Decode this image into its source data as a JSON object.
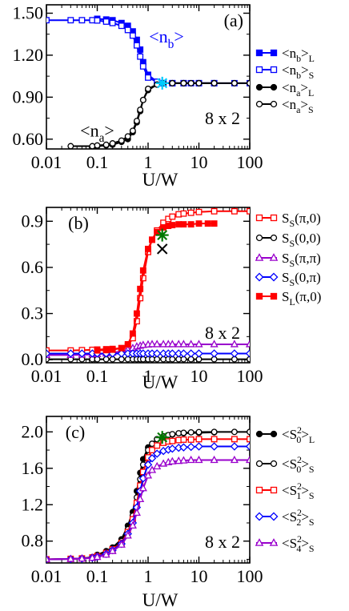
{
  "figure": {
    "size_label": "8 x 2"
  },
  "chart_data": [
    {
      "type": "line",
      "panel_label": "(a)",
      "size_label": "8 x 2",
      "xlabel": "U/W",
      "ylabel": "",
      "xscale": "log",
      "xlim": [
        0.01,
        100
      ],
      "ylim": [
        0.53,
        1.56
      ],
      "xticks": [
        0.01,
        0.1,
        1,
        10,
        100
      ],
      "xtick_labels": [
        "0.01",
        "0.1",
        "1",
        "10",
        "100"
      ],
      "yticks": [
        0.6,
        0.9,
        1.2,
        1.5
      ],
      "ytick_labels": [
        "0.60",
        "0.90",
        "1.20",
        "1.50"
      ],
      "legend_position": "right",
      "annotations": [
        {
          "text": "<n",
          "sub": "b",
          "close": ">",
          "x": 2.3,
          "y": 1.29,
          "color": "#0000ff"
        },
        {
          "text": "<n",
          "sub": "a",
          "close": ">",
          "x": 0.1,
          "y": 0.62,
          "color": "#000000"
        }
      ],
      "markers_extra": [
        {
          "shape": "asterisk",
          "x": 1.9,
          "y": 1.0,
          "color": "#00ccff"
        }
      ],
      "series": [
        {
          "name": "<n",
          "sub": "b",
          "close": ">",
          "tail": "L",
          "color": "#0000ff",
          "marker": "square",
          "fill": true,
          "x": [
            0.1,
            0.15,
            0.2,
            0.3,
            0.4,
            0.5,
            0.6,
            0.7,
            0.8,
            1.0,
            1.5,
            2.0,
            3.0,
            5.0,
            10,
            20
          ],
          "y": [
            1.46,
            1.455,
            1.45,
            1.43,
            1.41,
            1.37,
            1.31,
            1.24,
            1.15,
            1.06,
            1.01,
            1.0,
            1.0,
            1.0,
            1.0,
            1.0
          ]
        },
        {
          "name": "<n",
          "sub": "b",
          "close": ">",
          "tail": "S",
          "color": "#0000ff",
          "marker": "square",
          "fill": false,
          "x": [
            0.01,
            0.03,
            0.05,
            0.08,
            0.1,
            0.15,
            0.2,
            0.3,
            0.4,
            0.5,
            0.6,
            0.7,
            0.8,
            1.0,
            1.5,
            2.0,
            3.0,
            5.0,
            7.0,
            10,
            20,
            50,
            100
          ],
          "y": [
            1.45,
            1.45,
            1.45,
            1.45,
            1.448,
            1.44,
            1.43,
            1.41,
            1.38,
            1.34,
            1.27,
            1.19,
            1.12,
            1.04,
            1.01,
            1.0,
            1.0,
            1.0,
            1.0,
            1.0,
            1.0,
            1.0,
            1.0
          ]
        },
        {
          "name": "<n",
          "sub": "a",
          "close": ">",
          "tail": "L",
          "color": "#000000",
          "marker": "circle",
          "fill": true,
          "x": [
            0.1,
            0.15,
            0.2,
            0.3,
            0.4,
            0.5,
            0.6,
            0.7,
            0.8,
            1.0,
            1.5,
            2.0,
            3.0,
            5.0,
            10,
            20
          ],
          "y": [
            0.55,
            0.555,
            0.56,
            0.58,
            0.6,
            0.65,
            0.72,
            0.8,
            0.88,
            0.95,
            0.99,
            1.0,
            1.0,
            1.0,
            1.0,
            1.0
          ]
        },
        {
          "name": "<n",
          "sub": "a",
          "close": ">",
          "tail": "S",
          "color": "#000000",
          "marker": "circle",
          "fill": false,
          "x": [
            0.03,
            0.08,
            0.1,
            0.15,
            0.2,
            0.3,
            0.4,
            0.5,
            0.6,
            0.7,
            0.8,
            1.0,
            1.5,
            2.0,
            3.0,
            5.0,
            7.0,
            10,
            20,
            50,
            100
          ],
          "y": [
            0.55,
            0.55,
            0.555,
            0.56,
            0.57,
            0.59,
            0.62,
            0.66,
            0.73,
            0.81,
            0.88,
            0.96,
            0.99,
            1.0,
            1.0,
            1.0,
            1.0,
            1.0,
            1.0,
            1.0,
            1.0
          ]
        }
      ]
    },
    {
      "type": "line",
      "panel_label": "(b)",
      "size_label": "8 x 2",
      "xlabel": "U/W",
      "ylabel": "",
      "xscale": "log",
      "xlim": [
        0.01,
        100
      ],
      "ylim": [
        -0.02,
        0.99
      ],
      "xticks": [
        0.01,
        0.1,
        1,
        10,
        100
      ],
      "xtick_labels": [
        "0.01",
        "0.1",
        "1",
        "10",
        "100"
      ],
      "yticks": [
        0.0,
        0.3,
        0.6,
        0.9
      ],
      "ytick_labels": [
        "0.0",
        "0.3",
        "0.6",
        "0.9"
      ],
      "legend_position": "right",
      "markers_extra": [
        {
          "shape": "asterisk",
          "x": 1.9,
          "y": 0.81,
          "color": "#007700"
        },
        {
          "shape": "cross",
          "x": 1.9,
          "y": 0.72,
          "color": "#000000"
        }
      ],
      "series": [
        {
          "name": "S",
          "sub": "S",
          "close": "(π,0)",
          "tail": "",
          "color": "#ff0000",
          "marker": "square",
          "fill": false,
          "x": [
            0.01,
            0.03,
            0.05,
            0.08,
            0.1,
            0.15,
            0.2,
            0.3,
            0.4,
            0.5,
            0.6,
            0.7,
            0.8,
            1.0,
            1.2,
            1.5,
            2.0,
            2.5,
            3.0,
            4.0,
            5.0,
            7.0,
            10,
            20,
            50,
            100
          ],
          "y": [
            0.06,
            0.06,
            0.062,
            0.064,
            0.066,
            0.068,
            0.07,
            0.075,
            0.09,
            0.14,
            0.25,
            0.4,
            0.53,
            0.7,
            0.78,
            0.84,
            0.89,
            0.915,
            0.93,
            0.945,
            0.95,
            0.955,
            0.96,
            0.965,
            0.965,
            0.965
          ]
        },
        {
          "name": "S",
          "sub": "S",
          "close": "(0,0)",
          "tail": "",
          "color": "#000000",
          "marker": "circle",
          "fill": false,
          "x": [
            0.01,
            0.03,
            0.05,
            0.08,
            0.1,
            0.15,
            0.2,
            0.3,
            0.4,
            0.5,
            0.6,
            0.7,
            0.8,
            1.0,
            1.2,
            1.5,
            2.0,
            2.5,
            3.0,
            4.0,
            5.0,
            7.0,
            10,
            20,
            50,
            100
          ],
          "y": [
            0.003,
            0.003,
            0.003,
            0.003,
            0.003,
            0.003,
            0.003,
            0.003,
            0.003,
            0.003,
            0.003,
            0.003,
            0.003,
            0.003,
            0.003,
            0.003,
            0.003,
            0.003,
            0.003,
            0.003,
            0.003,
            0.003,
            0.003,
            0.003,
            0.003,
            0.003
          ]
        },
        {
          "name": "S",
          "sub": "S",
          "close": "(π,π)",
          "tail": "",
          "color": "#9900cc",
          "marker": "triangle",
          "fill": false,
          "x": [
            0.01,
            0.03,
            0.05,
            0.08,
            0.1,
            0.15,
            0.2,
            0.3,
            0.4,
            0.5,
            0.6,
            0.7,
            0.8,
            1.0,
            1.2,
            1.5,
            2.0,
            2.5,
            3.0,
            4.0,
            5.0,
            7.0,
            10,
            20,
            50,
            100
          ],
          "y": [
            0.03,
            0.03,
            0.032,
            0.034,
            0.036,
            0.04,
            0.045,
            0.055,
            0.065,
            0.075,
            0.085,
            0.09,
            0.095,
            0.098,
            0.1,
            0.1,
            0.1,
            0.1,
            0.1,
            0.1,
            0.1,
            0.1,
            0.1,
            0.1,
            0.1,
            0.1
          ]
        },
        {
          "name": "S",
          "sub": "S",
          "close": "(0,π)",
          "tail": "",
          "color": "#0000ff",
          "marker": "diamond",
          "fill": false,
          "x": [
            0.01,
            0.03,
            0.05,
            0.08,
            0.1,
            0.15,
            0.2,
            0.3,
            0.4,
            0.5,
            0.6,
            0.7,
            0.8,
            1.0,
            1.2,
            1.5,
            2.0,
            2.5,
            3.0,
            4.0,
            5.0,
            7.0,
            10,
            20,
            50,
            100
          ],
          "y": [
            0.04,
            0.04,
            0.04,
            0.04,
            0.04,
            0.04,
            0.04,
            0.04,
            0.04,
            0.04,
            0.04,
            0.04,
            0.04,
            0.04,
            0.04,
            0.04,
            0.04,
            0.04,
            0.04,
            0.04,
            0.04,
            0.04,
            0.04,
            0.04,
            0.04,
            0.04
          ]
        },
        {
          "name": "S",
          "sub": "L",
          "close": "(π,0)",
          "tail": "",
          "color": "#ff0000",
          "marker": "square",
          "fill": true,
          "x": [
            0.1,
            0.15,
            0.2,
            0.3,
            0.4,
            0.5,
            0.6,
            0.7,
            0.8,
            1.0,
            1.2,
            1.5,
            2.0,
            2.5,
            3.0,
            4.0,
            5.0,
            7.0,
            10,
            15,
            20
          ],
          "y": [
            0.06,
            0.062,
            0.065,
            0.075,
            0.1,
            0.17,
            0.3,
            0.46,
            0.58,
            0.72,
            0.78,
            0.83,
            0.86,
            0.87,
            0.875,
            0.88,
            0.88,
            0.88,
            0.885,
            0.885,
            0.885
          ]
        }
      ]
    },
    {
      "type": "line",
      "panel_label": "(c)",
      "size_label": "8 x 2",
      "xlabel": "U/W",
      "ylabel": "",
      "xscale": "log",
      "xlim": [
        0.01,
        100
      ],
      "ylim": [
        0.56,
        2.17
      ],
      "xticks": [
        0.01,
        0.1,
        1,
        10,
        100
      ],
      "xtick_labels": [
        "0.01",
        "0.1",
        "1",
        "10",
        "100"
      ],
      "yticks": [
        0.8,
        1.2,
        1.6,
        2.0
      ],
      "ytick_labels": [
        "0.8",
        "1.2",
        "1.6",
        "2.0"
      ],
      "legend_position": "right",
      "markers_extra": [
        {
          "shape": "asterisk",
          "x": 1.9,
          "y": 1.94,
          "color": "#007700"
        }
      ],
      "series": [
        {
          "name": "<S",
          "sup": "2",
          "sub": "0",
          "close": ">",
          "tail": "L",
          "color": "#000000",
          "marker": "circle",
          "fill": true,
          "x": [
            0.1,
            0.15,
            0.2,
            0.3,
            0.4,
            0.5,
            0.6,
            0.7,
            0.8,
            1.0,
            1.5,
            2.0,
            3.0,
            5.0,
            10,
            20
          ],
          "y": [
            0.65,
            0.69,
            0.73,
            0.82,
            0.97,
            1.12,
            1.35,
            1.55,
            1.7,
            1.83,
            1.92,
            1.95,
            1.97,
            1.985,
            1.99,
            1.995
          ]
        },
        {
          "name": "<S",
          "sup": "2",
          "sub": "0",
          "close": ">",
          "tail": "S",
          "color": "#000000",
          "marker": "circle",
          "fill": false,
          "x": [
            0.01,
            0.03,
            0.05,
            0.08,
            0.1,
            0.15,
            0.2,
            0.3,
            0.4,
            0.5,
            0.6,
            0.7,
            0.8,
            1.0,
            1.2,
            1.5,
            2.0,
            2.5,
            3.0,
            4.0,
            5.0,
            7.0,
            10,
            20,
            50,
            100
          ],
          "y": [
            0.6,
            0.605,
            0.61,
            0.625,
            0.64,
            0.68,
            0.72,
            0.8,
            0.93,
            1.08,
            1.28,
            1.48,
            1.64,
            1.8,
            1.87,
            1.92,
            1.95,
            1.965,
            1.975,
            1.985,
            1.99,
            1.995,
            1.998,
            2.0,
            2.0,
            2.0
          ]
        },
        {
          "name": "<S",
          "sup": "2",
          "sub": "1",
          "close": ">",
          "tail": "S",
          "color": "#ff0000",
          "marker": "square",
          "fill": false,
          "x": [
            0.01,
            0.03,
            0.05,
            0.08,
            0.1,
            0.15,
            0.2,
            0.3,
            0.4,
            0.5,
            0.6,
            0.7,
            0.8,
            1.0,
            1.2,
            1.5,
            2.0,
            2.5,
            3.0,
            4.0,
            5.0,
            7.0,
            10,
            20,
            50,
            100
          ],
          "y": [
            0.6,
            0.605,
            0.61,
            0.62,
            0.635,
            0.67,
            0.71,
            0.78,
            0.9,
            1.04,
            1.22,
            1.41,
            1.56,
            1.72,
            1.8,
            1.85,
            1.88,
            1.895,
            1.9,
            1.91,
            1.915,
            1.915,
            1.92,
            1.92,
            1.92,
            1.92
          ]
        },
        {
          "name": "<S",
          "sup": "2",
          "sub": "2",
          "close": ">",
          "tail": "S",
          "color": "#0000ff",
          "marker": "diamond",
          "fill": false,
          "x": [
            0.01,
            0.03,
            0.05,
            0.08,
            0.1,
            0.15,
            0.2,
            0.3,
            0.4,
            0.5,
            0.6,
            0.7,
            0.8,
            1.0,
            1.2,
            1.5,
            2.0,
            2.5,
            3.0,
            4.0,
            5.0,
            7.0,
            10,
            20,
            50,
            100
          ],
          "y": [
            0.6,
            0.604,
            0.608,
            0.617,
            0.63,
            0.66,
            0.7,
            0.77,
            0.88,
            1.0,
            1.17,
            1.35,
            1.49,
            1.64,
            1.71,
            1.76,
            1.79,
            1.805,
            1.815,
            1.825,
            1.83,
            1.835,
            1.84,
            1.84,
            1.84,
            1.84
          ]
        },
        {
          "name": "<S",
          "sup": "2",
          "sub": "4",
          "close": ">",
          "tail": "S",
          "color": "#9900cc",
          "marker": "triangle",
          "fill": false,
          "x": [
            0.01,
            0.03,
            0.05,
            0.08,
            0.1,
            0.15,
            0.2,
            0.3,
            0.4,
            0.5,
            0.6,
            0.7,
            0.8,
            1.0,
            1.2,
            1.5,
            2.0,
            2.5,
            3.0,
            4.0,
            5.0,
            7.0,
            10,
            20,
            50,
            100
          ],
          "y": [
            0.6,
            0.603,
            0.607,
            0.615,
            0.625,
            0.65,
            0.69,
            0.76,
            0.86,
            0.97,
            1.11,
            1.26,
            1.38,
            1.52,
            1.58,
            1.62,
            1.65,
            1.665,
            1.675,
            1.68,
            1.685,
            1.69,
            1.69,
            1.69,
            1.69,
            1.69
          ]
        }
      ]
    }
  ]
}
